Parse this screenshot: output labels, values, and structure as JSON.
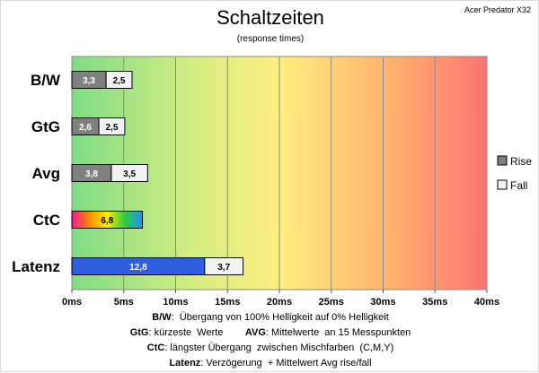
{
  "header": {
    "title": "Schaltzeiten",
    "subtitle": "(response times)",
    "model": "Acer Predator X32"
  },
  "chart_data": {
    "type": "bar",
    "orientation": "horizontal",
    "x_unit": "ms",
    "xlim": [
      0,
      40
    ],
    "ticks": [
      "0ms",
      "5ms",
      "10ms",
      "15ms",
      "20ms",
      "25ms",
      "30ms",
      "35ms",
      "40ms"
    ],
    "categories": [
      "B/W",
      "GtG",
      "Avg",
      "CtC",
      "Latenz"
    ],
    "series": [
      {
        "name": "Rise",
        "color": "#808080",
        "values": [
          3.3,
          2.6,
          3.8,
          null,
          null
        ],
        "labels": [
          "3,3",
          "2,6",
          "3,8",
          "",
          ""
        ]
      },
      {
        "name": "Fall",
        "color": "#f2f2f2",
        "values": [
          2.5,
          2.5,
          3.5,
          null,
          3.7
        ],
        "labels": [
          "2,5",
          "2,5",
          "3,5",
          "",
          "3,7"
        ]
      }
    ],
    "special_bars": [
      {
        "category": "CtC",
        "value": 6.8,
        "label": "6,8",
        "style": "rainbow"
      },
      {
        "category": "Latenz",
        "value": 12.8,
        "label": "12,8",
        "style": "blue"
      }
    ],
    "background": "gradient green-yellow-red",
    "legend_position": "right",
    "grid": true
  },
  "notes": [
    {
      "parts": [
        {
          "b": "B/W"
        },
        {
          "t": ":  Übergang von 100% Helligkeit auf 0% Helligkeit"
        }
      ]
    },
    {
      "parts": [
        {
          "b": "GtG"
        },
        {
          "t": ": kürzeste  Werte        "
        },
        {
          "b": "AVG"
        },
        {
          "t": ": Mittelwerte  an 15 Messpunkten"
        }
      ]
    },
    {
      "parts": [
        {
          "b": "CtC"
        },
        {
          "t": ": längster Übergang  zwischen Mischfarben  (C,M,Y)"
        }
      ]
    },
    {
      "parts": [
        {
          "b": "Latenz"
        },
        {
          "t": ": Verzögerung  + Mittelwert Avg rise/fall"
        }
      ]
    }
  ]
}
